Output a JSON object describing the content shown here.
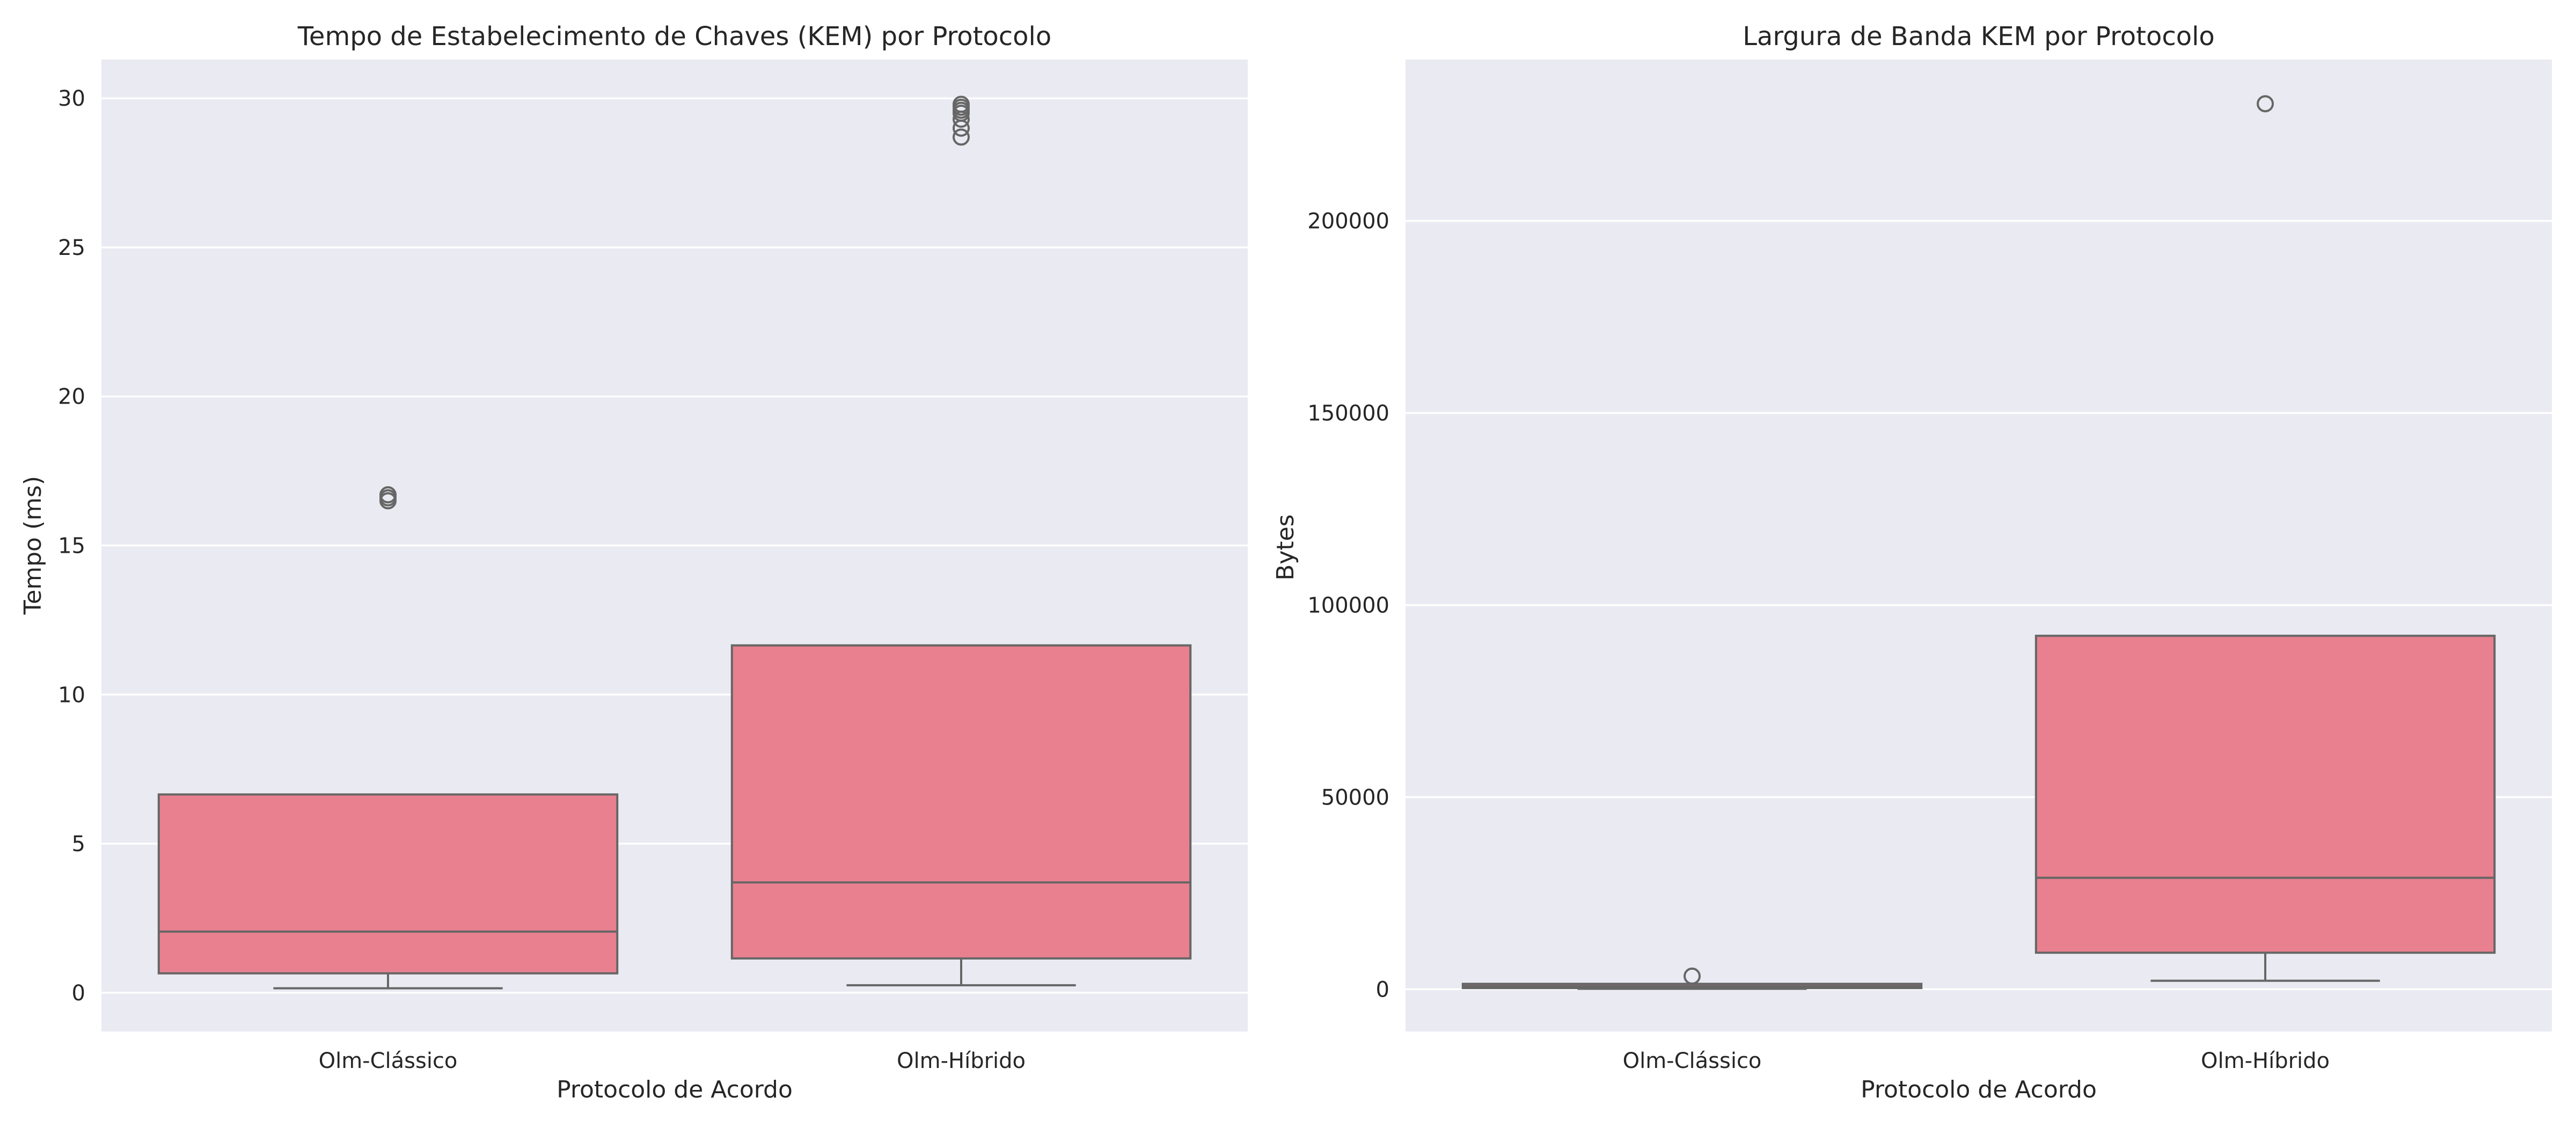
{
  "chart_data": [
    {
      "type": "box",
      "title": "Tempo de Estabelecimento de Chaves (KEM) por Protocolo",
      "xlabel": "Protocolo de Acordo",
      "ylabel": "Tempo (ms)",
      "categories": [
        "Olm-Clássico",
        "Olm-Híbrido"
      ],
      "ylim": [
        -1.3,
        31.3
      ],
      "yticks": [
        0,
        5,
        10,
        15,
        20,
        25,
        30
      ],
      "box_color": "#e8808f",
      "grid": true,
      "boxes": [
        {
          "category": "Olm-Clássico",
          "whisker_low": 0.15,
          "q1": 0.65,
          "median": 2.05,
          "q3": 6.65,
          "whisker_high": 6.65,
          "outliers": [
            16.5,
            16.6,
            16.7
          ]
        },
        {
          "category": "Olm-Híbrido",
          "whisker_low": 0.25,
          "q1": 1.15,
          "median": 3.7,
          "q3": 11.65,
          "whisker_high": 11.65,
          "outliers": [
            28.7,
            29.0,
            29.3,
            29.5,
            29.6,
            29.7,
            29.8
          ]
        }
      ]
    },
    {
      "type": "box",
      "title": "Largura de Banda KEM por Protocolo",
      "xlabel": "Protocolo de Acordo",
      "ylabel": "Bytes",
      "categories": [
        "Olm-Clássico",
        "Olm-Híbrido"
      ],
      "ylim": [
        -11000,
        242000
      ],
      "yticks": [
        0,
        50000,
        100000,
        150000,
        200000
      ],
      "box_color": "#e8808f",
      "grid": true,
      "boxes": [
        {
          "category": "Olm-Clássico",
          "whisker_low": 100,
          "q1": 300,
          "median": 800,
          "q3": 1400,
          "whisker_high": 1400,
          "outliers": [
            3400
          ]
        },
        {
          "category": "Olm-Híbrido",
          "whisker_low": 2200,
          "q1": 9500,
          "median": 29000,
          "q3": 92000,
          "whisker_high": 92000,
          "outliers": [
            230500
          ]
        }
      ]
    }
  ]
}
